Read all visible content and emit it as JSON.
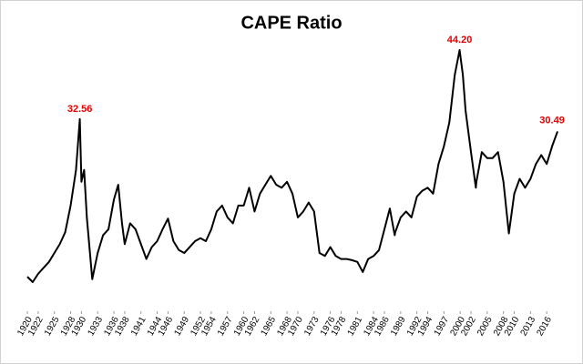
{
  "chart_data": {
    "type": "line",
    "title": "CAPE Ratio",
    "x": [
      1920,
      1921,
      1922,
      1923,
      1924,
      1925,
      1926,
      1927,
      1928,
      1929,
      1929.7,
      1930,
      1930.5,
      1931,
      1932,
      1933,
      1934,
      1935,
      1936,
      1936.8,
      1937.5,
      1938,
      1939,
      1940,
      1941,
      1942,
      1943,
      1944,
      1945,
      1946,
      1947,
      1948,
      1949,
      1950,
      1951,
      1952,
      1953,
      1954,
      1955,
      1956,
      1957,
      1958,
      1959,
      1960,
      1961,
      1962,
      1963,
      1964,
      1965,
      1966,
      1967,
      1968,
      1969,
      1970,
      1971,
      1972,
      1973,
      1974,
      1975,
      1976,
      1977,
      1978,
      1979,
      1980,
      1981,
      1982,
      1983,
      1984,
      1985,
      1986,
      1987,
      1987.9,
      1988,
      1989,
      1990,
      1991,
      1992,
      1993,
      1994,
      1995,
      1996,
      1997,
      1998,
      1999,
      1999.9,
      2000.5,
      2001,
      2002,
      2002.9,
      2003,
      2004,
      2005,
      2006,
      2007,
      2008,
      2009,
      2010,
      2011,
      2012,
      2013,
      2014,
      2015,
      2016,
      2017,
      2018
    ],
    "series": [
      {
        "name": "CAPE Ratio",
        "color": "#000000",
        "values": [
          6.0,
          5.1,
          6.5,
          7.5,
          8.5,
          10,
          11.5,
          13.5,
          18,
          24,
          32.56,
          22,
          24,
          16,
          5.6,
          10,
          13,
          14,
          19,
          21.5,
          15,
          11.5,
          15,
          14,
          11.5,
          9,
          11,
          12,
          14,
          15.8,
          12,
          10.5,
          10,
          11,
          12,
          12.5,
          12,
          14,
          17,
          18,
          16,
          15,
          18,
          18,
          21,
          17,
          20,
          21.5,
          23,
          21.5,
          21,
          22,
          20,
          16,
          17,
          18.5,
          17,
          10,
          9.5,
          11,
          9.5,
          9,
          9,
          8.8,
          8.5,
          6.8,
          9,
          9.5,
          10.5,
          14,
          17.5,
          13,
          13.5,
          16,
          17,
          16,
          19.5,
          20.5,
          21,
          20,
          25,
          28,
          32,
          40,
          44.2,
          40,
          34,
          27,
          21,
          22,
          27,
          26,
          26,
          27,
          22,
          13.3,
          20,
          22.5,
          21,
          22.5,
          25,
          26.5,
          25,
          28,
          30.49
        ],
        "value_labels": [
          null,
          null,
          null,
          null,
          null,
          null,
          null,
          null,
          null,
          null,
          "32.56",
          null,
          null,
          null,
          null,
          null,
          null,
          null,
          null,
          null,
          null,
          null,
          null,
          null,
          null,
          null,
          null,
          null,
          null,
          null,
          null,
          null,
          null,
          null,
          null,
          null,
          null,
          null,
          null,
          null,
          null,
          null,
          null,
          null,
          null,
          null,
          null,
          null,
          null,
          null,
          null,
          null,
          null,
          null,
          null,
          null,
          null,
          null,
          null,
          null,
          null,
          null,
          null,
          null,
          null,
          null,
          null,
          null,
          null,
          null,
          null,
          null,
          null,
          null,
          null,
          null,
          null,
          null,
          null,
          null,
          null,
          null,
          null,
          null,
          "44.20",
          null,
          null,
          null,
          null,
          null,
          null,
          null,
          null,
          null,
          null,
          null,
          null,
          null,
          null,
          null,
          null,
          null,
          null,
          null,
          "30.49"
        ]
      }
    ],
    "xlim": [
      1920,
      2019
    ],
    "xticks": [
      1920,
      1922,
      1925,
      1928,
      1930,
      1933,
      1936,
      1938,
      1941,
      1944,
      1946,
      1949,
      1952,
      1954,
      1957,
      1960,
      1962,
      1965,
      1968,
      1970,
      1973,
      1976,
      1978,
      1981,
      1984,
      1986,
      1989,
      1992,
      1994,
      1997,
      2000,
      2002,
      2005,
      2008,
      2010,
      2013,
      2016
    ]
  }
}
